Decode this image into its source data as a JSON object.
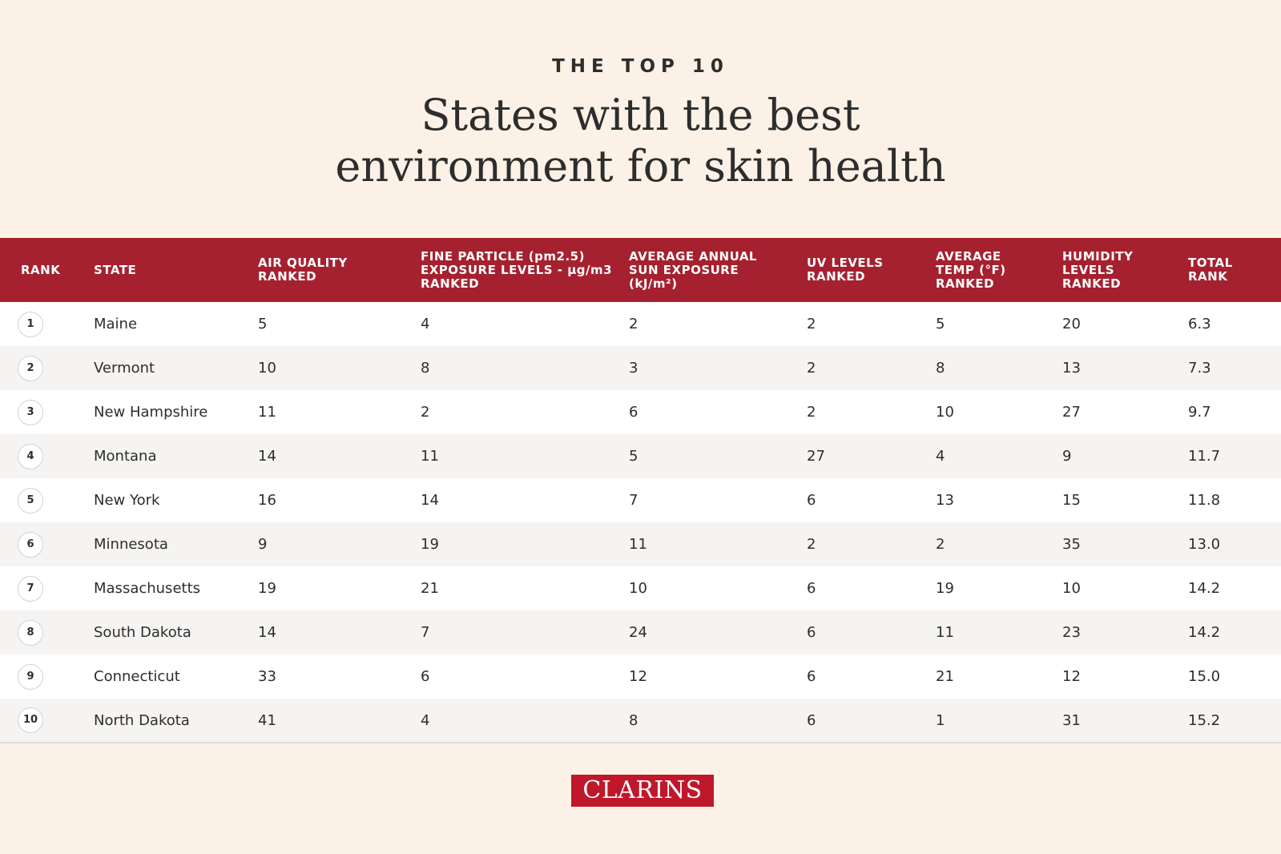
{
  "header": {
    "kicker": "THE TOP 10",
    "title_line1": "States with the best",
    "title_line2": "environment for skin health"
  },
  "table": {
    "columns": {
      "rank": "RANK",
      "state": "STATE",
      "air_quality": "AIR QUALITY RANKED",
      "fine_particle": "FINE PARTICLE (pm2.5) EXPOSURE LEVELS - µg/m3 RANKED",
      "sun_exposure": "AVERAGE ANNUAL SUN EXPOSURE (kJ/m²)",
      "uv_levels": "UV LEVELS RANKED",
      "avg_temp": "AVERAGE TEMP (°F) RANKED",
      "humidity": "HUMIDITY LEVELS RANKED",
      "total_rank": "TOTAL RANK"
    },
    "rows": [
      {
        "rank": "1",
        "state": "Maine",
        "air_quality": "5",
        "fine_particle": "4",
        "sun_exposure": "2",
        "uv_levels": "2",
        "avg_temp": "5",
        "humidity": "20",
        "total_rank": "6.3"
      },
      {
        "rank": "2",
        "state": "Vermont",
        "air_quality": "10",
        "fine_particle": "8",
        "sun_exposure": "3",
        "uv_levels": "2",
        "avg_temp": "8",
        "humidity": "13",
        "total_rank": "7.3"
      },
      {
        "rank": "3",
        "state": "New Hampshire",
        "air_quality": "11",
        "fine_particle": "2",
        "sun_exposure": "6",
        "uv_levels": "2",
        "avg_temp": "10",
        "humidity": "27",
        "total_rank": "9.7"
      },
      {
        "rank": "4",
        "state": "Montana",
        "air_quality": "14",
        "fine_particle": "11",
        "sun_exposure": "5",
        "uv_levels": "27",
        "avg_temp": "4",
        "humidity": "9",
        "total_rank": "11.7"
      },
      {
        "rank": "5",
        "state": "New York",
        "air_quality": "16",
        "fine_particle": "14",
        "sun_exposure": "7",
        "uv_levels": "6",
        "avg_temp": "13",
        "humidity": "15",
        "total_rank": "11.8"
      },
      {
        "rank": "6",
        "state": "Minnesota",
        "air_quality": "9",
        "fine_particle": "19",
        "sun_exposure": "11",
        "uv_levels": "2",
        "avg_temp": "2",
        "humidity": "35",
        "total_rank": "13.0"
      },
      {
        "rank": "7",
        "state": "Massachusetts",
        "air_quality": "19",
        "fine_particle": "21",
        "sun_exposure": "10",
        "uv_levels": "6",
        "avg_temp": "19",
        "humidity": "10",
        "total_rank": "14.2"
      },
      {
        "rank": "8",
        "state": "South Dakota",
        "air_quality": "14",
        "fine_particle": "7",
        "sun_exposure": "24",
        "uv_levels": "6",
        "avg_temp": "11",
        "humidity": "23",
        "total_rank": "14.2"
      },
      {
        "rank": "9",
        "state": "Connecticut",
        "air_quality": "33",
        "fine_particle": "6",
        "sun_exposure": "12",
        "uv_levels": "6",
        "avg_temp": "21",
        "humidity": "12",
        "total_rank": "15.0"
      },
      {
        "rank": "10",
        "state": "North Dakota",
        "air_quality": "41",
        "fine_particle": "4",
        "sun_exposure": "8",
        "uv_levels": "6",
        "avg_temp": "1",
        "humidity": "31",
        "total_rank": "15.2"
      }
    ]
  },
  "footer": {
    "logo_text": "CLARINS"
  },
  "colors": {
    "background": "#fbf1e6",
    "header_red": "#a5212f",
    "logo_red": "#c0172b",
    "row_alt": "#f6f4f2"
  }
}
